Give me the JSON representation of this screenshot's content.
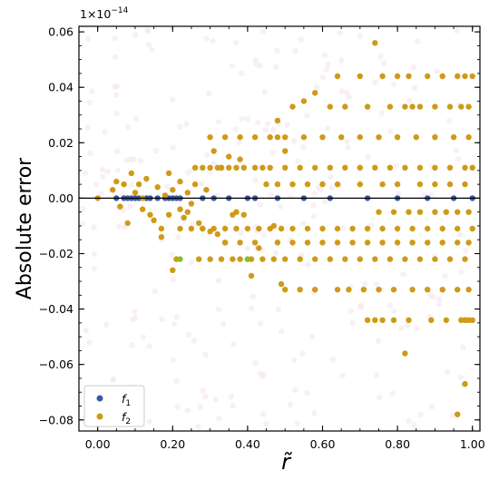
{
  "chart_data": {
    "type": "scatter",
    "title": "",
    "xlabel": "r̃",
    "ylabel": "Absolute error",
    "y_scale_label": "1×10",
    "y_scale_exponent": "−14",
    "xlim": [
      -0.05,
      1.02
    ],
    "ylim": [
      -0.084,
      0.062
    ],
    "x_ticks": [
      0.0,
      0.2,
      0.4,
      0.6,
      0.8,
      1.0
    ],
    "x_tick_labels": [
      "0.00",
      "0.20",
      "0.40",
      "0.60",
      "0.80",
      "1.00"
    ],
    "y_ticks": [
      -0.08,
      -0.06,
      -0.04,
      -0.02,
      0.0,
      0.02,
      0.04,
      0.06
    ],
    "y_tick_labels": [
      "−0.08",
      "−0.06",
      "−0.04",
      "−0.02",
      "0.00",
      "0.02",
      "0.04",
      "0.06"
    ],
    "zero_line": true,
    "grid": false,
    "legend_position": "bottom-left",
    "colors": {
      "f1": "#3a5aa8",
      "f2": "#cf9a18",
      "f2_alt": "#8cbd2e"
    },
    "series": [
      {
        "name": "f₁",
        "legend_label": "f",
        "legend_sub": "1",
        "color": "#3a5aa8",
        "x": [
          0.05,
          0.07,
          0.08,
          0.09,
          0.1,
          0.11,
          0.13,
          0.14,
          0.16,
          0.18,
          0.19,
          0.2,
          0.21,
          0.22,
          0.28,
          0.31,
          0.35,
          0.4,
          0.42,
          0.48,
          0.55,
          0.62,
          0.72,
          0.8,
          0.88,
          0.95,
          1.0
        ],
        "y": [
          0.0,
          0.0,
          0.0,
          0.0,
          0.0,
          0.0,
          0.0,
          0.0,
          0.0,
          0.0,
          0.0,
          0.0,
          0.0,
          0.0,
          0.0,
          0.0,
          0.0,
          0.0,
          0.0,
          0.0,
          0.0,
          0.0,
          0.0,
          0.0,
          0.0,
          0.0,
          0.0
        ]
      },
      {
        "name": "f₂",
        "legend_label": "f",
        "legend_sub": "2",
        "color": "#cf9a18",
        "x": [
          0.0,
          0.04,
          0.05,
          0.06,
          0.07,
          0.08,
          0.09,
          0.1,
          0.11,
          0.12,
          0.12,
          0.13,
          0.14,
          0.15,
          0.16,
          0.17,
          0.17,
          0.18,
          0.19,
          0.19,
          0.2,
          0.2,
          0.21,
          0.22,
          0.22,
          0.23,
          0.24,
          0.24,
          0.25,
          0.26,
          0.27,
          0.28,
          0.29,
          0.3,
          0.31,
          0.32,
          0.33,
          0.34,
          0.35,
          0.36,
          0.37,
          0.38,
          0.39,
          0.4,
          0.41,
          0.43,
          0.45,
          0.47,
          0.48,
          0.48,
          0.49,
          0.5,
          0.52,
          0.55,
          0.58,
          0.62,
          0.64,
          0.66,
          0.7,
          0.72,
          0.74,
          0.76,
          0.78,
          0.8,
          0.82,
          0.83,
          0.84,
          0.86,
          0.88,
          0.9,
          0.92,
          0.94,
          0.96,
          0.97,
          0.98,
          0.99,
          1.0,
          0.26,
          0.28,
          0.3,
          0.32,
          0.33,
          0.35,
          0.37,
          0.39,
          0.42,
          0.44,
          0.46,
          0.5,
          0.54,
          0.58,
          0.62,
          0.66,
          0.7,
          0.74,
          0.78,
          0.82,
          0.86,
          0.9,
          0.94,
          0.98,
          1.0,
          0.3,
          0.34,
          0.38,
          0.42,
          0.46,
          0.5,
          0.55,
          0.6,
          0.65,
          0.7,
          0.75,
          0.8,
          0.85,
          0.9,
          0.95,
          0.99,
          0.22,
          0.25,
          0.28,
          0.31,
          0.34,
          0.37,
          0.4,
          0.43,
          0.46,
          0.49,
          0.52,
          0.56,
          0.6,
          0.64,
          0.68,
          0.72,
          0.76,
          0.8,
          0.84,
          0.88,
          0.92,
          0.96,
          1.0,
          0.27,
          0.3,
          0.33,
          0.36,
          0.38,
          0.41,
          0.44,
          0.47,
          0.5,
          0.54,
          0.58,
          0.62,
          0.66,
          0.7,
          0.74,
          0.78,
          0.82,
          0.86,
          0.9,
          0.94,
          0.98,
          0.34,
          0.38,
          0.42,
          0.48,
          0.52,
          0.56,
          0.6,
          0.64,
          0.68,
          0.72,
          0.76,
          0.8,
          0.84,
          0.88,
          0.92,
          0.96,
          0.99,
          0.5,
          0.54,
          0.58,
          0.64,
          0.67,
          0.71,
          0.75,
          0.79,
          0.84,
          0.88,
          0.92,
          0.96,
          0.99,
          0.72,
          0.82,
          0.89,
          0.93,
          0.96,
          0.98,
          1.0,
          0.48,
          0.52,
          0.56,
          0.6,
          0.64,
          0.7,
          0.76,
          0.8,
          0.86,
          0.9,
          0.94,
          0.98,
          0.75,
          0.79,
          0.83,
          0.86,
          0.9,
          0.93,
          0.96,
          0.99,
          0.74,
          0.76,
          0.79,
          0.83,
          0.97,
          0.98,
          0.98,
          0.99
        ],
        "y": [
          0.0,
          0.003,
          0.006,
          -0.003,
          0.005,
          -0.009,
          0.009,
          0.002,
          0.005,
          0.0,
          -0.004,
          0.007,
          -0.006,
          -0.008,
          0.004,
          -0.011,
          -0.014,
          0.001,
          0.009,
          -0.006,
          -0.026,
          0.003,
          -0.022,
          -0.004,
          0.006,
          -0.007,
          0.002,
          -0.005,
          -0.002,
          0.005,
          -0.009,
          -0.011,
          0.003,
          -0.012,
          0.017,
          -0.013,
          0.011,
          -0.016,
          0.015,
          -0.006,
          -0.005,
          0.014,
          -0.006,
          -0.022,
          -0.028,
          -0.018,
          0.005,
          -0.01,
          0.022,
          0.028,
          -0.031,
          0.017,
          0.033,
          0.035,
          0.038,
          0.033,
          0.044,
          0.033,
          0.044,
          0.033,
          0.056,
          0.044,
          0.033,
          0.044,
          0.033,
          0.044,
          0.033,
          0.033,
          0.044,
          0.033,
          0.044,
          0.033,
          0.044,
          0.033,
          0.044,
          0.033,
          0.044,
          0.011,
          0.011,
          0.011,
          0.011,
          0.011,
          0.011,
          0.011,
          0.011,
          0.011,
          0.011,
          0.011,
          0.011,
          0.011,
          0.011,
          0.011,
          0.011,
          0.011,
          0.011,
          0.011,
          0.011,
          0.011,
          0.011,
          0.011,
          0.011,
          0.011,
          0.022,
          0.022,
          0.022,
          0.022,
          0.022,
          0.022,
          0.022,
          0.022,
          0.022,
          0.022,
          0.022,
          0.022,
          0.022,
          0.022,
          0.022,
          0.022,
          -0.011,
          -0.011,
          -0.011,
          -0.011,
          -0.011,
          -0.011,
          -0.011,
          -0.011,
          -0.011,
          -0.011,
          -0.011,
          -0.011,
          -0.011,
          -0.011,
          -0.011,
          -0.011,
          -0.011,
          -0.011,
          -0.011,
          -0.011,
          -0.011,
          -0.011,
          -0.011,
          -0.022,
          -0.022,
          -0.022,
          -0.022,
          -0.022,
          -0.022,
          -0.022,
          -0.022,
          -0.022,
          -0.022,
          -0.022,
          -0.022,
          -0.022,
          -0.022,
          -0.022,
          -0.022,
          -0.022,
          -0.022,
          -0.022,
          -0.022,
          -0.022,
          -0.016,
          -0.016,
          -0.016,
          -0.016,
          -0.016,
          -0.016,
          -0.016,
          -0.016,
          -0.016,
          -0.016,
          -0.016,
          -0.016,
          -0.016,
          -0.016,
          -0.016,
          -0.016,
          -0.016,
          -0.033,
          -0.033,
          -0.033,
          -0.033,
          -0.033,
          -0.033,
          -0.033,
          -0.033,
          -0.033,
          -0.033,
          -0.033,
          -0.033,
          -0.033,
          -0.044,
          -0.056,
          -0.044,
          -0.044,
          -0.078,
          -0.067,
          -0.044,
          0.005,
          0.005,
          0.005,
          0.005,
          0.005,
          0.005,
          0.005,
          0.005,
          0.005,
          0.005,
          0.005,
          0.005,
          -0.005,
          -0.005,
          -0.005,
          -0.005,
          -0.005,
          -0.005,
          -0.005,
          -0.005,
          -0.044,
          -0.044,
          -0.044,
          -0.044,
          -0.044,
          -0.044,
          -0.044,
          -0.044
        ]
      },
      {
        "name": "f₂ (green points)",
        "color": "#8cbd2e",
        "x": [
          0.22,
          0.4
        ],
        "y": [
          -0.022,
          -0.022
        ]
      }
    ]
  }
}
